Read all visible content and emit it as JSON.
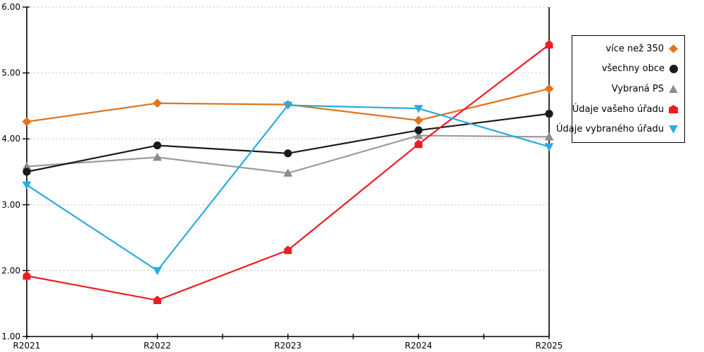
{
  "chart_data": {
    "type": "line",
    "title": "",
    "xlabel": "",
    "ylabel": "",
    "categories": [
      "R2021",
      "R2022",
      "R2023",
      "R2024",
      "R2025"
    ],
    "y_tick_labels": [
      "1.00",
      "2.00",
      "3.00",
      "4.00",
      "5.00",
      "6.00"
    ],
    "ylim": [
      1,
      6
    ],
    "grid": "horizontal-dotted",
    "grid_color": "#c3c3c3",
    "axis_color": "#000000",
    "legend_position": "right-outside",
    "legend_border_color": "#000000",
    "series": [
      {
        "name": "více než 350",
        "marker": "diamond",
        "color": "#e2741c",
        "line_color": "#e2741c",
        "values": [
          4.26,
          4.54,
          4.52,
          4.28,
          4.76
        ]
      },
      {
        "name": "všechny obce",
        "marker": "circle",
        "color": "#1a1a1a",
        "line_color": "#1a1a1a",
        "values": [
          3.5,
          3.9,
          3.78,
          4.13,
          4.38
        ]
      },
      {
        "name": "Vybraná PS",
        "marker": "triangle-up",
        "color": "#8c8c8c",
        "line_color": "#9b9b9b",
        "values": [
          3.58,
          3.72,
          3.48,
          4.05,
          4.03
        ]
      },
      {
        "name": "Údaje vašeho úřadu",
        "marker": "pentagon",
        "color": "#ee1c24",
        "line_color": "#ee1c24",
        "values": [
          1.92,
          1.55,
          2.31,
          3.92,
          5.43
        ]
      },
      {
        "name": "Údaje vybraného úřadu",
        "marker": "triangle-down",
        "color": "#29abe2",
        "line_color": "#29abe2",
        "values": [
          3.3,
          2.0,
          4.51,
          4.46,
          3.88
        ]
      }
    ]
  }
}
